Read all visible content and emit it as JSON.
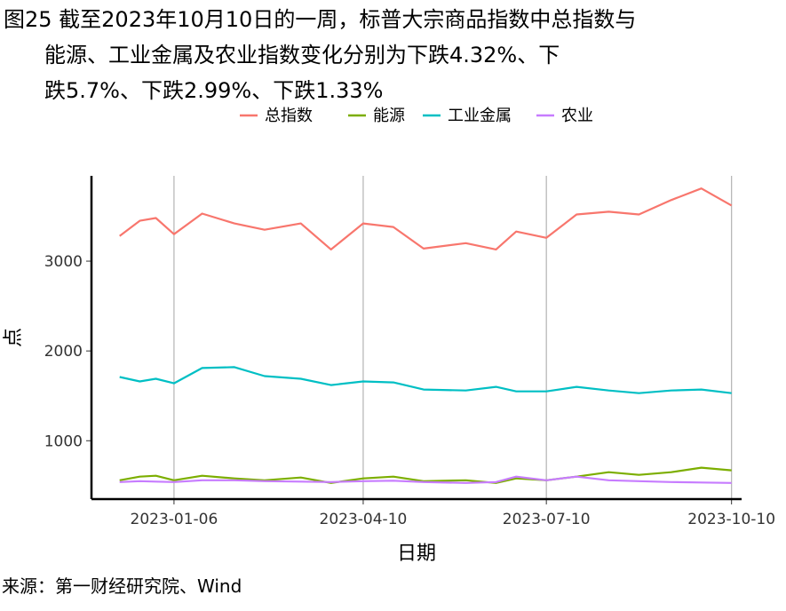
{
  "title": {
    "line1": "图25  截至2023年10月10日的一周，标普大宗商品指数中总指数与",
    "line2": "能源、工业金属及农业指数变化分别为下跌4.32%、下",
    "line3": "跌5.7%、下跌2.99%、下跌1.33%"
  },
  "source": "来源：第一财经研究院、Wind",
  "chart_data": {
    "type": "line",
    "xlabel": "日期",
    "ylabel": "点",
    "x_range": [
      "2022-11-26",
      "2023-10-15"
    ],
    "ylim": [
      350,
      3950
    ],
    "x_ticks": [
      "2023-01-06",
      "2023-04-10",
      "2023-07-10",
      "2023-10-10"
    ],
    "y_ticks": [
      1000,
      2000,
      3000
    ],
    "grid": "vertical at x ticks",
    "legend_position": "top",
    "x": [
      "2022-12-10",
      "2022-12-20",
      "2022-12-28",
      "2023-01-06",
      "2023-01-20",
      "2023-02-05",
      "2023-02-20",
      "2023-03-10",
      "2023-03-25",
      "2023-04-10",
      "2023-04-25",
      "2023-05-10",
      "2023-05-31",
      "2023-06-15",
      "2023-06-25",
      "2023-07-10",
      "2023-07-25",
      "2023-08-10",
      "2023-08-25",
      "2023-09-10",
      "2023-09-25",
      "2023-10-10"
    ],
    "series": [
      {
        "name": "总指数",
        "color": "#F8766D",
        "values": [
          3280,
          3450,
          3480,
          3300,
          3530,
          3420,
          3350,
          3420,
          3130,
          3420,
          3380,
          3140,
          3200,
          3130,
          3330,
          3260,
          3520,
          3550,
          3520,
          3680,
          3810,
          3620
        ]
      },
      {
        "name": "能源",
        "color": "#7CAE00",
        "values": [
          560,
          600,
          610,
          560,
          610,
          580,
          560,
          590,
          530,
          580,
          600,
          550,
          560,
          530,
          580,
          560,
          600,
          650,
          620,
          650,
          700,
          670
        ]
      },
      {
        "name": "工业金属",
        "color": "#00BFC4",
        "values": [
          1710,
          1660,
          1690,
          1640,
          1810,
          1820,
          1720,
          1690,
          1620,
          1660,
          1650,
          1570,
          1560,
          1600,
          1550,
          1550,
          1600,
          1560,
          1530,
          1560,
          1570,
          1530
        ]
      },
      {
        "name": "农业",
        "color": "#C77CFF",
        "values": [
          540,
          550,
          545,
          540,
          560,
          560,
          550,
          545,
          540,
          550,
          555,
          540,
          530,
          540,
          600,
          560,
          600,
          560,
          550,
          540,
          535,
          530
        ]
      }
    ]
  }
}
